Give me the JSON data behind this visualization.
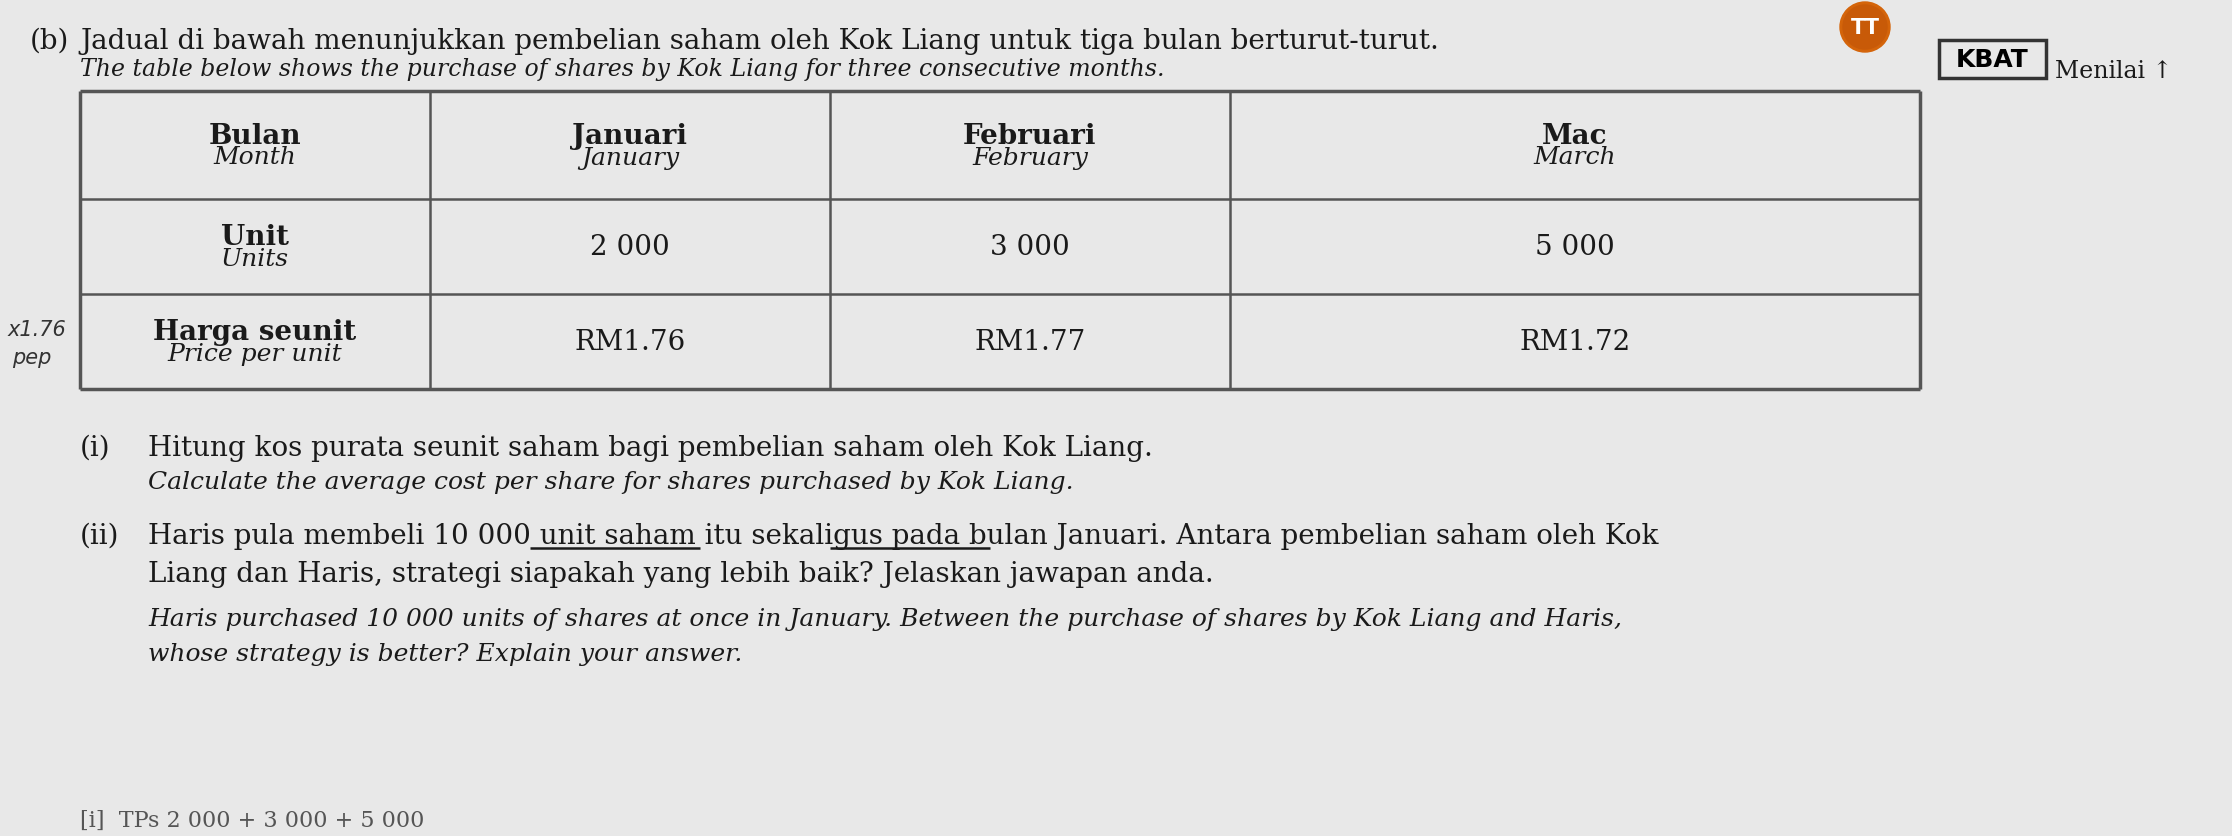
{
  "bg_color": "#e8e8e8",
  "part_label": "(b)",
  "malay_title": "Jadual di bawah menunjukkan pembelian saham oleh Kok Liang untuk tiga bulan berturut-turut.",
  "english_title": "The table below shows the purchase of shares by Kok Liang for three consecutive months.",
  "kbat_label": "KBAT",
  "menilai_label": "Menilai",
  "tt_text": "TT",
  "table": {
    "row1_label_malay": "Bulan",
    "row1_label_english": "Month",
    "col1_malay": "Januari",
    "col1_english": "January",
    "col2_malay": "Februari",
    "col2_english": "February",
    "col3_malay": "Mac",
    "col3_english": "March",
    "row2_label_malay": "Unit",
    "row2_label_english": "Units",
    "row2_values": [
      "2 000",
      "3 000",
      "5 000"
    ],
    "row3_label_malay": "Harga seunit",
    "row3_label_english": "Price per unit",
    "row3_values": [
      "RM1.76",
      "RM1.77",
      "RM1.72"
    ]
  },
  "q_i_num": "(i)",
  "q_i_malay": "Hitung kos purata seunit saham bagi pembelian saham oleh Kok Liang.",
  "q_i_english": "Calculate the average cost per share for shares purchased by Kok Liang.",
  "q_ii_num": "(ii)",
  "q_ii_malay_1": "Haris pula membeli 10 000 unit saham itu sekaligus pada bulan Januari. Antara pembelian saham oleh Kok",
  "q_ii_malay_2": "Liang dan Haris, strategi siapakah yang lebih baik? Jelaskan jawapan anda.",
  "q_ii_english_1": "Haris purchased 10 000 units of shares at once in January. Between the purchase of shares by Kok Liang and Haris,",
  "q_ii_english_2": "whose strategy is better? Explain your answer.",
  "handwritten_x176": "x1.76",
  "handwritten_pep": "pep",
  "bottom_partial": "[i]  TPs 2 000 + 3 000 + 5 000",
  "tt_icon_color": "#d4640a",
  "table_line_color": "#555555",
  "text_color": "#1a1a1a",
  "menilai_arrow": "↓"
}
